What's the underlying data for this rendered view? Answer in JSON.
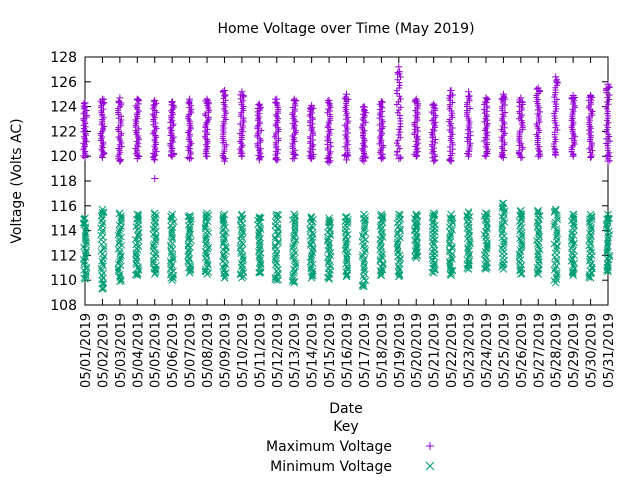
{
  "chart_data": {
    "type": "scatter",
    "title": "Home Voltage over Time (May 2019)",
    "xlabel": "Date",
    "ylabel": "Voltage (Volts AC)",
    "ylim": [
      108,
      128
    ],
    "yticks": [
      "108",
      "110",
      "112",
      "114",
      "116",
      "118",
      "120",
      "122",
      "124",
      "126",
      "128"
    ],
    "categories": [
      "05/01/2019",
      "05/02/2019",
      "05/03/2019",
      "05/04/2019",
      "05/05/2019",
      "05/06/2019",
      "05/07/2019",
      "05/08/2019",
      "05/09/2019",
      "05/10/2019",
      "05/11/2019",
      "05/12/2019",
      "05/13/2019",
      "05/14/2019",
      "05/15/2019",
      "05/16/2019",
      "05/17/2019",
      "05/18/2019",
      "05/19/2019",
      "05/20/2019",
      "05/21/2019",
      "05/22/2019",
      "05/23/2019",
      "05/24/2019",
      "05/25/2019",
      "05/26/2019",
      "05/27/2019",
      "05/28/2019",
      "05/29/2019",
      "05/30/2019",
      "05/31/2019"
    ],
    "legend": {
      "title": "Key",
      "position": "bottom"
    },
    "series": [
      {
        "name": "Maximum Voltage",
        "marker": "plus",
        "color": "#9400d3",
        "min": [
          119.9,
          119.9,
          119.6,
          119.8,
          119.7,
          120.0,
          119.8,
          120.0,
          119.6,
          120.0,
          119.7,
          119.7,
          119.8,
          119.8,
          119.5,
          119.7,
          119.6,
          119.8,
          119.8,
          120.0,
          119.6,
          119.6,
          120.0,
          120.0,
          119.9,
          119.9,
          120.0,
          120.1,
          120.0,
          119.9,
          119.6
        ],
        "max": [
          124.3,
          124.6,
          124.7,
          124.6,
          124.5,
          124.4,
          124.6,
          124.6,
          125.3,
          125.2,
          124.2,
          124.6,
          124.6,
          124.1,
          124.5,
          125.0,
          124.0,
          124.4,
          127.2,
          124.6,
          124.2,
          125.3,
          125.2,
          124.7,
          125.0,
          124.7,
          125.5,
          126.4,
          124.9,
          124.9,
          125.8
        ],
        "outliers": [
          {
            "x": "05/05/2019",
            "y": 118.2
          }
        ]
      },
      {
        "name": "Minimum Voltage",
        "marker": "cross",
        "color": "#009e73",
        "min": [
          110.1,
          109.3,
          109.9,
          110.4,
          110.5,
          110.0,
          110.6,
          110.5,
          110.2,
          110.2,
          110.6,
          110.0,
          109.8,
          110.2,
          110.1,
          110.3,
          109.5,
          110.4,
          110.3,
          111.8,
          110.6,
          110.4,
          110.9,
          110.9,
          110.9,
          110.5,
          110.5,
          109.8,
          110.4,
          110.2,
          110.7
        ],
        "max": [
          115.0,
          115.7,
          115.4,
          115.3,
          115.4,
          115.3,
          115.2,
          115.4,
          115.3,
          115.3,
          115.1,
          115.3,
          115.3,
          115.1,
          115.0,
          115.1,
          115.3,
          115.3,
          115.3,
          115.3,
          115.4,
          115.3,
          115.5,
          115.4,
          116.2,
          115.6,
          115.6,
          115.7,
          115.3,
          115.3,
          115.3
        ]
      }
    ]
  }
}
